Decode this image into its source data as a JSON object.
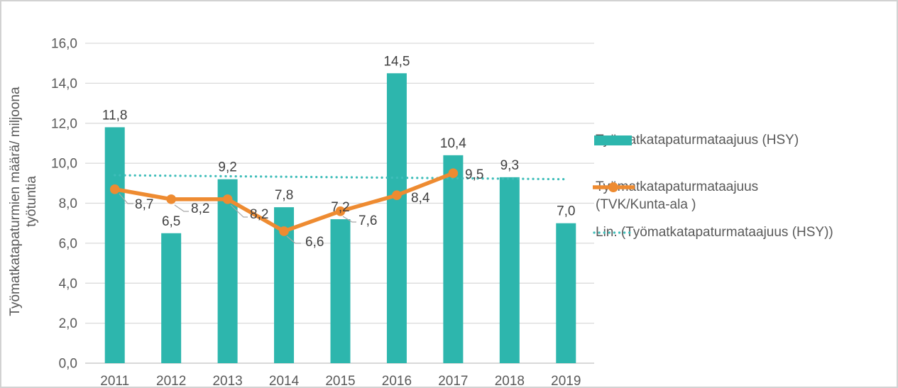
{
  "chart_data": {
    "type": "bar",
    "combo": "bar + line + linear trendline",
    "categories": [
      "2011",
      "2012",
      "2013",
      "2014",
      "2015",
      "2016",
      "2017",
      "2018",
      "2019"
    ],
    "series": [
      {
        "name": "Työmatkatapaturmataajuus (HSY)",
        "type": "bar",
        "color": "#2DB6AD",
        "values": [
          11.8,
          6.5,
          9.2,
          7.8,
          7.2,
          14.5,
          10.4,
          9.3,
          7.0
        ],
        "labels": [
          "11,8",
          "6,5",
          "9,2",
          "7,8",
          "7,2",
          "14,5",
          "10,4",
          "9,3",
          "7,0"
        ]
      },
      {
        "name": "Työmatkatapaturmataajuus (TVK/Kunta-ala )",
        "type": "line",
        "color": "#EE8B31",
        "values": [
          8.7,
          8.2,
          8.2,
          6.6,
          7.6,
          8.4,
          9.5
        ],
        "labels": [
          "8,7",
          "8,2",
          "8,2",
          "6,6",
          "7,6",
          "8,4",
          "9,5"
        ]
      },
      {
        "name": "Lin. (Työmatkatapaturmataajuus (HSY))",
        "type": "trendline",
        "style": "dotted",
        "color": "#3EBDB9",
        "start_value": 9.4,
        "end_value": 9.2
      }
    ],
    "ylabel": "Työmatkatapaturmien määrä/ miljoona työtuntia",
    "ylabel_lines": [
      "Työmatkatapaturmien määrä/ miljoona",
      "työtuntia"
    ],
    "xlabel": "",
    "ylim": [
      0,
      16
    ],
    "ytick_step": 2,
    "yticks": [
      "0,0",
      "2,0",
      "4,0",
      "6,0",
      "8,0",
      "10,0",
      "12,0",
      "14,0",
      "16,0"
    ],
    "grid": true,
    "legend_position": "right",
    "legend": {
      "items": [
        {
          "marker": "bar-swatch",
          "lines": [
            "Työmatkatapaturmataajuus (HSY)"
          ]
        },
        {
          "marker": "line-with-dot",
          "lines": [
            "Työmatkatapaturmataajuus",
            "(TVK/Kunta-ala )"
          ]
        },
        {
          "marker": "dotted-line",
          "lines": [
            "Lin. (Työmatkatapaturmataajuus (HSY))"
          ]
        }
      ]
    },
    "colors": {
      "grid": "#D9D9D9",
      "axis_text": "#595959",
      "data_label": "#404040",
      "leader_line": "#A6A6A6",
      "frame_border": "#D2D2D2",
      "background": "#FFFFFF"
    }
  }
}
